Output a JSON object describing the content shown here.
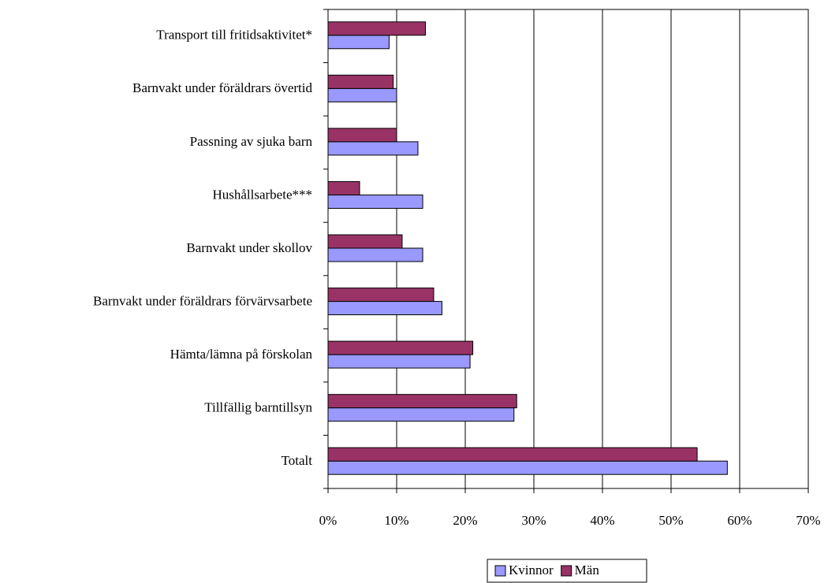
{
  "chart_data": {
    "type": "hbar",
    "categories": [
      "Transport till fritidsaktivitet*",
      "Barnvakt under föräldrars övertid",
      "Passning av sjuka barn",
      "Hushållsarbete***",
      "Barnvakt under skollov",
      "Barnvakt under föräldrars förvärvsarbete",
      "Hämta/lämna på förskolan",
      "Tillfällig barntillsyn",
      "Totalt"
    ],
    "series": [
      {
        "name": "Kvinnor",
        "color": "#9999ff",
        "values": [
          8.9,
          10.0,
          13.1,
          13.8,
          13.8,
          16.6,
          20.7,
          27.1,
          58.2
        ]
      },
      {
        "name": "Män",
        "color": "#993366",
        "values": [
          14.2,
          9.5,
          10.0,
          4.6,
          10.8,
          15.4,
          21.1,
          27.5,
          53.8
        ]
      }
    ],
    "xlim": [
      0,
      70
    ],
    "xticks": [
      {
        "value": 0,
        "label": "0%"
      },
      {
        "value": 10,
        "label": "10%"
      },
      {
        "value": 20,
        "label": "20%"
      },
      {
        "value": 30,
        "label": "30%"
      },
      {
        "value": 40,
        "label": "40%"
      },
      {
        "value": 50,
        "label": "50%"
      },
      {
        "value": 60,
        "label": "60%"
      },
      {
        "value": 70,
        "label": "70%"
      }
    ],
    "grid": true,
    "legend": "bottom"
  }
}
